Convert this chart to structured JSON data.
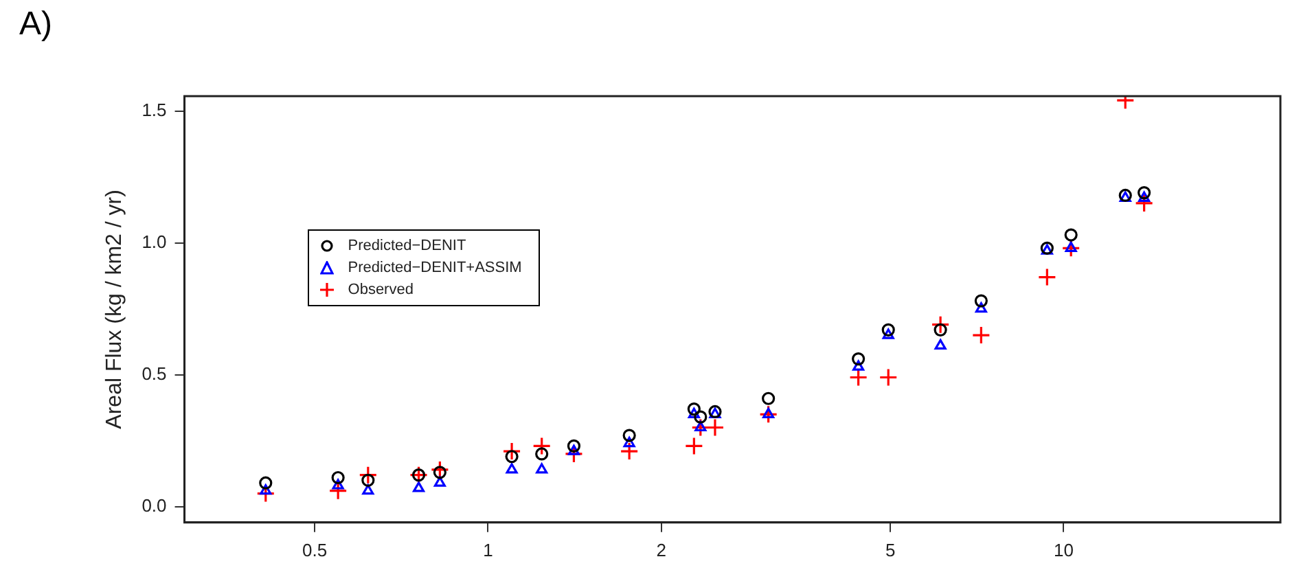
{
  "chart_data": {
    "type": "scatter",
    "ylabel": "Areal Flux (kg / km2 / yr)",
    "annotations": [
      "A)"
    ],
    "log": "x",
    "grid": false,
    "legend": "left",
    "x": [
      0.411,
      0.549,
      0.619,
      0.758,
      0.825,
      1.1,
      1.24,
      1.41,
      1.76,
      2.28,
      2.34,
      2.48,
      3.07,
      4.4,
      4.96,
      6.11,
      7.19,
      9.36,
      10.3,
      12.8,
      13.8
    ],
    "xlim": [
      0.297,
      23.8
    ],
    "xticks": [
      0.5,
      1,
      2,
      5,
      10
    ],
    "ylim": [
      -0.06,
      1.556
    ],
    "yticks": [
      {
        "value": 0,
        "label": "0.0"
      },
      0.5,
      {
        "value": 1,
        "label": "1.0"
      },
      1.5
    ],
    "series": [
      {
        "name": "Predicted−DENIT",
        "color": "#000000",
        "marker": "circle",
        "values": [
          0.09,
          0.11,
          0.1,
          0.12,
          0.13,
          0.19,
          0.2,
          0.23,
          0.27,
          0.37,
          0.34,
          0.36,
          0.41,
          0.56,
          0.67,
          0.67,
          0.78,
          0.98,
          1.03,
          1.18,
          1.19
        ]
      },
      {
        "name": "Predicted−DENIT+ASSIM",
        "color": "#0000ff",
        "marker": "triangle",
        "values": [
          0.06,
          0.08,
          0.06,
          0.07,
          0.09,
          0.14,
          0.14,
          0.21,
          0.24,
          0.35,
          0.3,
          0.35,
          0.35,
          0.53,
          0.65,
          0.61,
          0.75,
          0.97,
          0.98,
          1.17,
          1.17
        ]
      },
      {
        "name": "Observed",
        "color": "#ff0000",
        "marker": "cross",
        "values": [
          0.05,
          0.06,
          0.12,
          0.12,
          0.14,
          0.21,
          0.23,
          0.2,
          0.21,
          0.23,
          0.3,
          0.3,
          0.35,
          0.49,
          0.49,
          0.69,
          0.65,
          0.87,
          0.98,
          1.54,
          1.15
        ]
      }
    ]
  }
}
